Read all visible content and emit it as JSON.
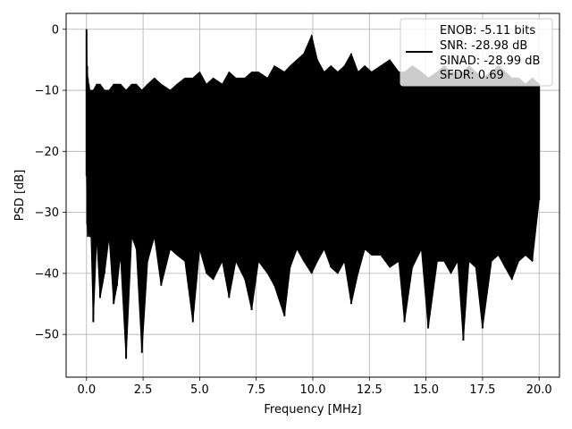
{
  "chart_data": {
    "type": "line",
    "title": "",
    "xlabel": "Frequency [MHz]",
    "ylabel": "PSD [dB]",
    "xlim": [
      -0.9,
      20.9
    ],
    "ylim": [
      -57,
      2.6
    ],
    "grid": true,
    "line_color": "#000000",
    "x_ticks": [
      0.0,
      2.5,
      5.0,
      7.5,
      10.0,
      12.5,
      15.0,
      17.5,
      20.0
    ],
    "x_tick_labels": [
      "0.0",
      "2.5",
      "5.0",
      "7.5",
      "10.0",
      "12.5",
      "15.0",
      "17.5",
      "20.0"
    ],
    "y_ticks": [
      0,
      -10,
      -20,
      -30,
      -40,
      -50
    ],
    "y_tick_labels": [
      "0",
      "−10",
      "−20",
      "−30",
      "−40",
      "−50"
    ],
    "legend": {
      "placement": "top-right",
      "entries": [
        "ENOB: -5.11 bits",
        "SNR: -28.98 dB",
        "SINAD: -28.99 dB",
        "SFDR: 0.69"
      ]
    },
    "series": [
      {
        "x": [
          0.0,
          0.03,
          0.06,
          0.1,
          0.15,
          0.2,
          0.3,
          0.45,
          0.6,
          0.8,
          1.0,
          1.2,
          1.35,
          1.5,
          1.75,
          2.0,
          2.2,
          2.45,
          2.7,
          3.0,
          3.3,
          3.7,
          4.0,
          4.35,
          4.7,
          5.0,
          5.3,
          5.6,
          6.0,
          6.3,
          6.6,
          7.0,
          7.3,
          7.6,
          8.0,
          8.3,
          8.75,
          9.0,
          9.3,
          9.6,
          9.95,
          10.2,
          10.5,
          10.8,
          11.1,
          11.4,
          11.7,
          12.0,
          12.3,
          12.6,
          13.0,
          13.4,
          13.8,
          14.05,
          14.4,
          14.8,
          15.1,
          15.5,
          15.8,
          16.1,
          16.4,
          16.65,
          16.9,
          17.2,
          17.5,
          17.9,
          18.2,
          18.5,
          18.8,
          19.1,
          19.4,
          19.7,
          20.0
        ],
        "upper": [
          0.0,
          -6,
          -8,
          -9,
          -10,
          -10,
          -10,
          -9,
          -9,
          -10,
          -10,
          -9,
          -9,
          -9,
          -10,
          -9,
          -9,
          -10,
          -9,
          -8,
          -9,
          -10,
          -9,
          -8,
          -8,
          -7,
          -9,
          -8,
          -9,
          -7,
          -8,
          -8,
          -7,
          -7,
          -8,
          -6,
          -7,
          -6,
          -5,
          -4,
          -1,
          -5,
          -7,
          -6,
          -7,
          -6,
          -4,
          -7,
          -6,
          -7,
          -6,
          -5,
          -7,
          -7,
          -6,
          -7,
          -8,
          -7,
          -6,
          -7,
          -7,
          -7,
          -6,
          -7,
          -8,
          -7,
          -6,
          -7,
          -8,
          -8,
          -9,
          -8,
          -9
        ],
        "lower": [
          -24,
          -32,
          -34,
          -33,
          -34,
          -34,
          -48,
          -34,
          -44,
          -40,
          -34,
          -45,
          -42,
          -37,
          -54,
          -34,
          -36,
          -53,
          -38,
          -34,
          -42,
          -36,
          -37,
          -38,
          -48,
          -36,
          -40,
          -41,
          -38,
          -44,
          -38,
          -41,
          -46,
          -38,
          -40,
          -42,
          -47,
          -39,
          -36,
          -38,
          -40,
          -38,
          -36,
          -39,
          -40,
          -38,
          -45,
          -40,
          -36,
          -37,
          -37,
          -39,
          -38,
          -48,
          -39,
          -36,
          -49,
          -38,
          -38,
          -40,
          -38,
          -51,
          -38,
          -39,
          -49,
          -38,
          -37,
          -39,
          -41,
          -38,
          -37,
          -38,
          -28
        ]
      }
    ]
  }
}
